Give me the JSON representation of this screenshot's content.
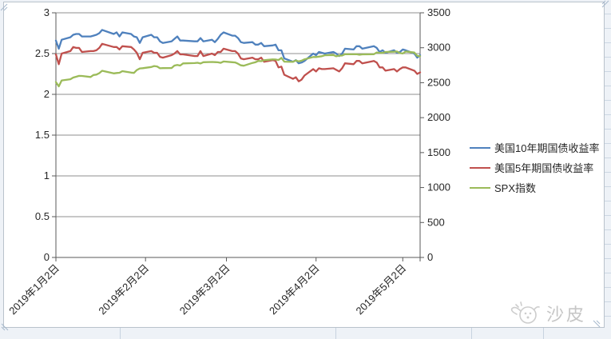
{
  "watermark": {
    "text": "沙皮"
  },
  "chart_data": {
    "type": "line",
    "title": "",
    "xlabel": "",
    "ylabel_left": "",
    "ylabel_right": "",
    "legend_position": "right",
    "grid": "horizontal",
    "x_axis": {
      "tick_labels": [
        "2019年1月2日",
        "2019年2月2日",
        "2019年3月2日",
        "2019年4月2日",
        "2019年5月2日"
      ],
      "tick_days": [
        0,
        31,
        59,
        90,
        120
      ]
    },
    "y_axis_left": {
      "min": 0,
      "max": 3,
      "ticks": [
        "3",
        "2.5",
        "2",
        "1.5",
        "1",
        "0.5",
        "0"
      ]
    },
    "y_axis_right": {
      "min": 0,
      "max": 3500,
      "ticks": [
        "3500",
        "3000",
        "2500",
        "2000",
        "1500",
        "1000",
        "500",
        "0"
      ]
    },
    "days": [
      0,
      1,
      2,
      5,
      6,
      7,
      8,
      9,
      12,
      13,
      14,
      15,
      16,
      20,
      21,
      22,
      23,
      26,
      27,
      28,
      29,
      30,
      33,
      34,
      35,
      36,
      37,
      40,
      41,
      42,
      43,
      44,
      48,
      49,
      50,
      51,
      54,
      55,
      56,
      57,
      58,
      61,
      62,
      63,
      64,
      65,
      68,
      69,
      70,
      71,
      72,
      75,
      76,
      77,
      78,
      79,
      82,
      83,
      84,
      85,
      86,
      89,
      90,
      91,
      92,
      93,
      96,
      97,
      98,
      99,
      100,
      103,
      104,
      105,
      106,
      110,
      111,
      112,
      113,
      114,
      117,
      118,
      119,
      120,
      121,
      124,
      125,
      126
    ],
    "series": [
      {
        "name": "美国10年期国债收益率",
        "color": "#4F81BD",
        "axis": "left",
        "values": [
          2.66,
          2.56,
          2.67,
          2.7,
          2.73,
          2.74,
          2.74,
          2.71,
          2.71,
          2.72,
          2.73,
          2.75,
          2.79,
          2.74,
          2.76,
          2.71,
          2.76,
          2.74,
          2.71,
          2.7,
          2.63,
          2.7,
          2.73,
          2.7,
          2.7,
          2.65,
          2.63,
          2.65,
          2.68,
          2.71,
          2.66,
          2.66,
          2.65,
          2.65,
          2.69,
          2.65,
          2.67,
          2.64,
          2.68,
          2.73,
          2.76,
          2.72,
          2.72,
          2.69,
          2.64,
          2.63,
          2.64,
          2.61,
          2.61,
          2.63,
          2.59,
          2.6,
          2.61,
          2.54,
          2.54,
          2.44,
          2.4,
          2.42,
          2.38,
          2.39,
          2.41,
          2.5,
          2.48,
          2.52,
          2.51,
          2.5,
          2.52,
          2.5,
          2.47,
          2.5,
          2.56,
          2.55,
          2.59,
          2.59,
          2.56,
          2.59,
          2.57,
          2.52,
          2.54,
          2.51,
          2.54,
          2.51,
          2.52,
          2.55,
          2.54,
          2.5,
          2.45,
          2.48
        ]
      },
      {
        "name": "美国5年期国债收益率",
        "color": "#C0504D",
        "axis": "left",
        "values": [
          2.49,
          2.37,
          2.5,
          2.53,
          2.58,
          2.57,
          2.57,
          2.52,
          2.53,
          2.53,
          2.54,
          2.57,
          2.62,
          2.58,
          2.58,
          2.55,
          2.59,
          2.58,
          2.55,
          2.51,
          2.43,
          2.51,
          2.53,
          2.51,
          2.51,
          2.46,
          2.45,
          2.48,
          2.5,
          2.53,
          2.49,
          2.49,
          2.47,
          2.47,
          2.53,
          2.47,
          2.5,
          2.48,
          2.52,
          2.52,
          2.56,
          2.53,
          2.53,
          2.5,
          2.44,
          2.43,
          2.45,
          2.43,
          2.43,
          2.45,
          2.4,
          2.42,
          2.41,
          2.33,
          2.34,
          2.24,
          2.19,
          2.21,
          2.16,
          2.18,
          2.23,
          2.31,
          2.28,
          2.32,
          2.31,
          2.31,
          2.32,
          2.3,
          2.28,
          2.32,
          2.38,
          2.37,
          2.41,
          2.41,
          2.38,
          2.41,
          2.39,
          2.33,
          2.33,
          2.29,
          2.31,
          2.28,
          2.31,
          2.33,
          2.33,
          2.29,
          2.25,
          2.27
        ]
      },
      {
        "name": "SPX指数",
        "color": "#9BBB59",
        "axis": "right",
        "values": [
          2510,
          2448,
          2532,
          2550,
          2574,
          2585,
          2597,
          2596,
          2582,
          2610,
          2616,
          2636,
          2671,
          2633,
          2639,
          2642,
          2665,
          2644,
          2640,
          2681,
          2704,
          2707,
          2725,
          2738,
          2732,
          2706,
          2708,
          2710,
          2745,
          2753,
          2745,
          2776,
          2780,
          2785,
          2775,
          2793,
          2796,
          2794,
          2792,
          2784,
          2803,
          2793,
          2790,
          2771,
          2749,
          2743,
          2783,
          2792,
          2811,
          2808,
          2822,
          2833,
          2832,
          2824,
          2855,
          2801,
          2798,
          2818,
          2805,
          2815,
          2834,
          2867,
          2867,
          2873,
          2879,
          2893,
          2896,
          2878,
          2888,
          2888,
          2907,
          2906,
          2907,
          2900,
          2905,
          2908,
          2933,
          2927,
          2926,
          2940,
          2943,
          2946,
          2924,
          2918,
          2946,
          2932,
          2884,
          2879
        ]
      }
    ]
  }
}
